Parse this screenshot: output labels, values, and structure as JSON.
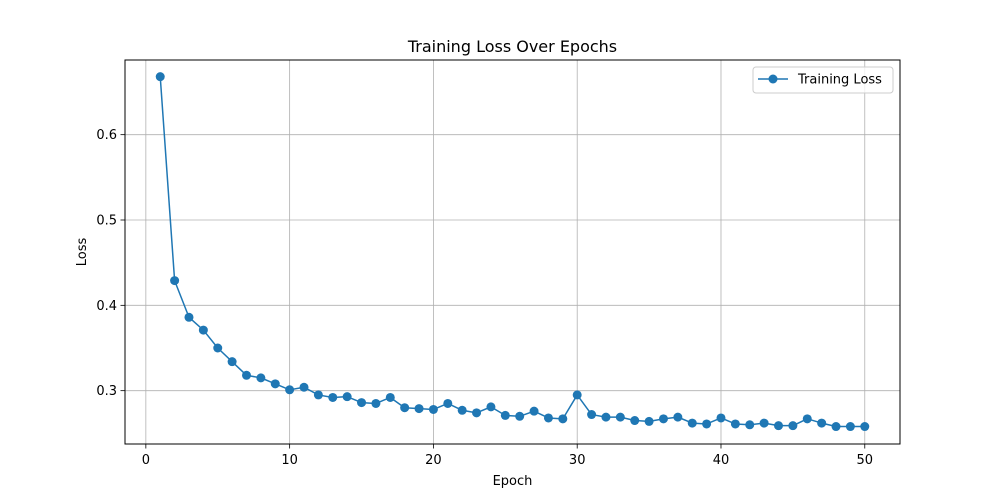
{
  "chart_data": {
    "type": "line",
    "title": "Training Loss Over Epochs",
    "xlabel": "Epoch",
    "ylabel": "Loss",
    "xlim": [
      -1.45,
      52.45
    ],
    "ylim": [
      0.2375,
      0.6875
    ],
    "xticks": [
      0,
      10,
      20,
      30,
      40,
      50
    ],
    "xtick_labels": [
      "0",
      "10",
      "20",
      "30",
      "40",
      "50"
    ],
    "yticks": [
      0.3,
      0.4,
      0.5,
      0.6
    ],
    "ytick_labels": [
      "0.3",
      "0.4",
      "0.5",
      "0.6"
    ],
    "grid": true,
    "legend_position": "top-right",
    "series": [
      {
        "name": "Training Loss",
        "color": "#1f77b4",
        "marker": "circle",
        "x": [
          1,
          2,
          3,
          4,
          5,
          6,
          7,
          8,
          9,
          10,
          11,
          12,
          13,
          14,
          15,
          16,
          17,
          18,
          19,
          20,
          21,
          22,
          23,
          24,
          25,
          26,
          27,
          28,
          29,
          30,
          31,
          32,
          33,
          34,
          35,
          36,
          37,
          38,
          39,
          40,
          41,
          42,
          43,
          44,
          45,
          46,
          47,
          48,
          49,
          50
        ],
        "y": [
          0.668,
          0.429,
          0.386,
          0.371,
          0.35,
          0.334,
          0.318,
          0.315,
          0.308,
          0.301,
          0.304,
          0.295,
          0.292,
          0.293,
          0.286,
          0.285,
          0.292,
          0.28,
          0.279,
          0.278,
          0.285,
          0.277,
          0.274,
          0.281,
          0.271,
          0.27,
          0.276,
          0.268,
          0.267,
          0.295,
          0.272,
          0.269,
          0.269,
          0.265,
          0.264,
          0.267,
          0.269,
          0.262,
          0.261,
          0.268,
          0.261,
          0.26,
          0.262,
          0.259,
          0.259,
          0.267,
          0.262,
          0.258,
          0.258,
          0.258
        ]
      }
    ]
  }
}
